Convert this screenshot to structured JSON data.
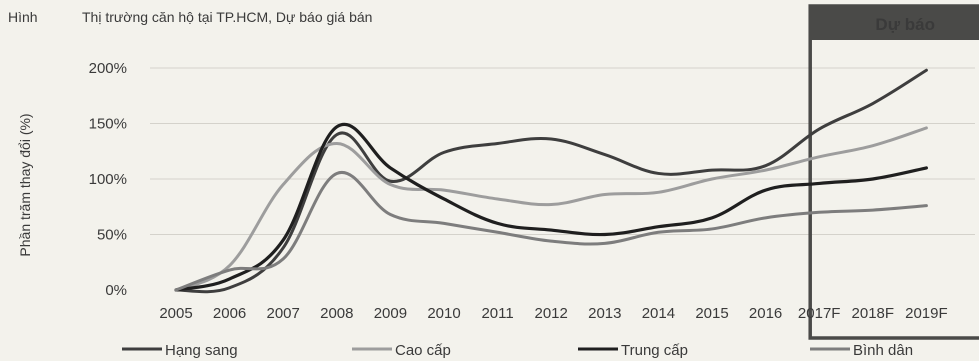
{
  "figure": {
    "label": "Hình",
    "caption": "Thị trường căn hộ tại TP.HCM, Dự báo giá bán"
  },
  "forecast_label": "Dự báo",
  "colors": {
    "background": "#f3f2ec",
    "grid": "#d4d2cb",
    "forecast_box": "#4a4a48",
    "forecast_header": "#4a4a48",
    "forecast_text": "#f7f6f0"
  },
  "chart_data": {
    "type": "line",
    "ylabel": "Phần trăm thay đổi (%)",
    "xlabel": "",
    "ylim": [
      0,
      200
    ],
    "yticks": [
      0,
      50,
      100,
      150,
      200
    ],
    "ytick_labels": [
      "0%",
      "50%",
      "100%",
      "150%",
      "200%"
    ],
    "grid": true,
    "legend_position": "bottom",
    "categories": [
      "2005",
      "2006",
      "2007",
      "2008",
      "2009",
      "2010",
      "2011",
      "2012",
      "2013",
      "2014",
      "2015",
      "2016",
      "2017F",
      "2018F",
      "2019F"
    ],
    "forecast_start_index": 12,
    "series": [
      {
        "name": "Hạng sang",
        "color": "#3e3e3e",
        "values": [
          0,
          2,
          38,
          140,
          98,
          124,
          132,
          136,
          122,
          105,
          108,
          112,
          145,
          168,
          198
        ]
      },
      {
        "name": "Cao cấp",
        "color": "#9d9d9d",
        "values": [
          0,
          22,
          95,
          132,
          95,
          90,
          82,
          77,
          86,
          88,
          100,
          108,
          120,
          130,
          146
        ]
      },
      {
        "name": "Trung cấp",
        "color": "#1f1f1f",
        "values": [
          0,
          10,
          45,
          147,
          110,
          82,
          60,
          54,
          50,
          57,
          65,
          90,
          96,
          100,
          110
        ]
      },
      {
        "name": "Bình dân",
        "color": "#7d7d7d",
        "values": [
          0,
          18,
          28,
          105,
          68,
          60,
          52,
          44,
          42,
          52,
          55,
          65,
          70,
          72,
          76
        ]
      }
    ]
  }
}
